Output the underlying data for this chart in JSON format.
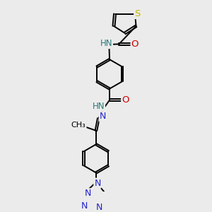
{
  "bg_color": "#ebebeb",
  "bond_color": "#000000",
  "bond_width": 1.4,
  "dbo": 0.018,
  "atom_colors": {
    "S": "#c8b400",
    "N": "#2222cc",
    "O": "#cc0000",
    "HN": "#2a7a7a",
    "C": "#000000"
  },
  "fs": 8.5
}
